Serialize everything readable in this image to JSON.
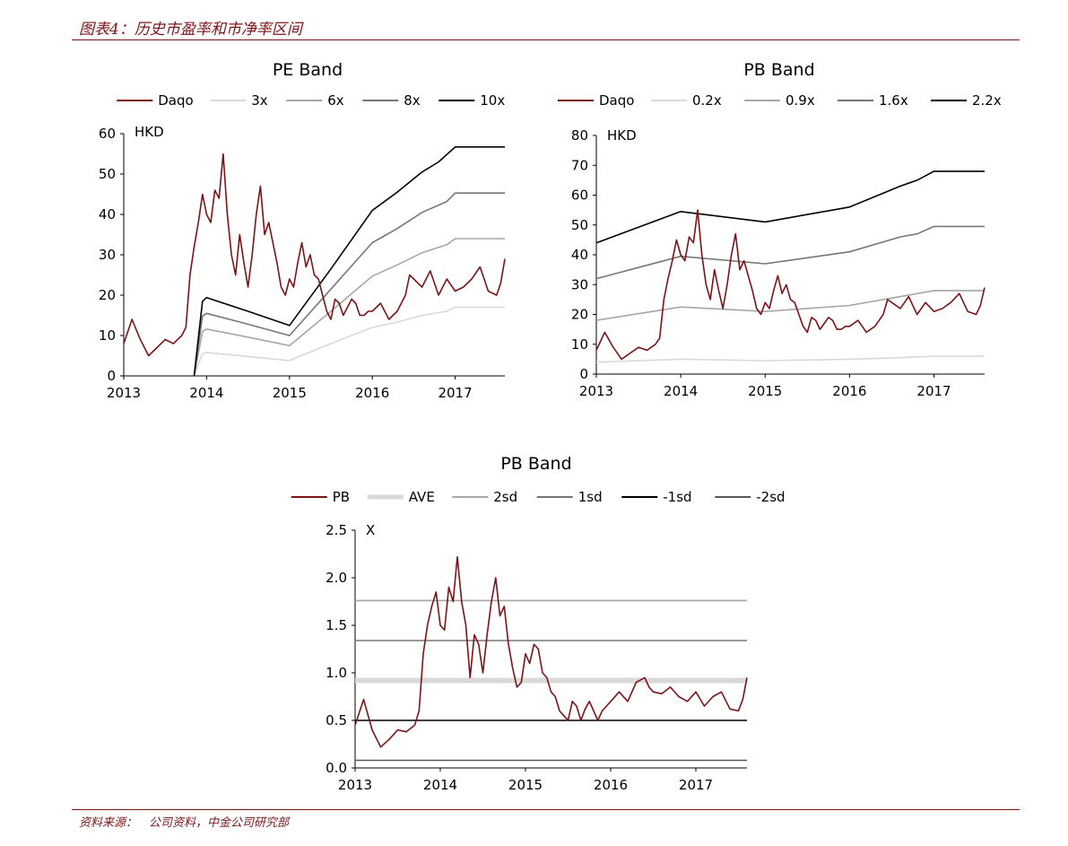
{
  "page": {
    "header": "图表4：历史市盈率和市净率区间",
    "source": "资料来源：　公司资料，中金公司研究部"
  },
  "chart_data": [
    {
      "type": "line",
      "title": "PE Band",
      "unit_label": "HKD",
      "ylim": [
        0,
        60
      ],
      "yticks": [
        0,
        10,
        20,
        30,
        40,
        50,
        60
      ],
      "xlim": [
        2013,
        2017.6
      ],
      "xticks": [
        2013,
        2014,
        2015,
        2016,
        2017
      ],
      "series": [
        {
          "name": "Daqo",
          "color": "#7b1416",
          "width": 1.6,
          "x": [
            2013.0,
            2013.1,
            2013.2,
            2013.3,
            2013.4,
            2013.5,
            2013.6,
            2013.7,
            2013.75,
            2013.8,
            2013.85,
            2013.9,
            2013.95,
            2014.0,
            2014.05,
            2014.1,
            2014.15,
            2014.2,
            2014.25,
            2014.3,
            2014.35,
            2014.4,
            2014.45,
            2014.5,
            2014.55,
            2014.6,
            2014.65,
            2014.7,
            2014.75,
            2014.8,
            2014.85,
            2014.9,
            2014.95,
            2015.0,
            2015.05,
            2015.1,
            2015.15,
            2015.2,
            2015.25,
            2015.3,
            2015.35,
            2015.4,
            2015.45,
            2015.5,
            2015.55,
            2015.6,
            2015.65,
            2015.7,
            2015.75,
            2015.8,
            2015.85,
            2015.9,
            2015.95,
            2016.0,
            2016.1,
            2016.2,
            2016.3,
            2016.4,
            2016.45,
            2016.5,
            2016.6,
            2016.7,
            2016.8,
            2016.9,
            2017.0,
            2017.1,
            2017.2,
            2017.3,
            2017.4,
            2017.5,
            2017.55,
            2017.6
          ],
          "y": [
            8,
            14,
            9,
            5,
            7,
            9,
            8,
            10,
            12,
            25,
            32,
            38,
            45,
            40,
            38,
            46,
            44,
            55,
            40,
            30,
            25,
            35,
            28,
            22,
            30,
            40,
            47,
            35,
            38,
            33,
            28,
            22,
            20,
            24,
            22,
            28,
            33,
            27,
            30,
            25,
            24,
            20,
            16,
            14,
            19,
            18,
            15,
            17,
            19,
            18,
            15,
            15,
            16,
            16,
            18,
            14,
            16,
            20,
            25,
            24,
            22,
            26,
            20,
            24,
            21,
            22,
            24,
            27,
            21,
            20,
            23,
            29
          ]
        },
        {
          "name": "3x",
          "color": "#d9d9d9",
          "width": 1.6,
          "x": [
            2013.85,
            2013.95,
            2014.0,
            2014.5,
            2015.0,
            2015.5,
            2016.0,
            2016.3,
            2016.6,
            2016.9,
            2017.0,
            2017.6
          ],
          "y": [
            0,
            5.5,
            5.8,
            4.8,
            3.8,
            8,
            12,
            13.3,
            15,
            16,
            17,
            17
          ]
        },
        {
          "name": "6x",
          "color": "#a6a6a6",
          "width": 1.6,
          "x": [
            2013.85,
            2013.95,
            2014.0,
            2014.5,
            2015.0,
            2015.5,
            2016.0,
            2016.3,
            2016.6,
            2016.9,
            2017.0,
            2017.6
          ],
          "y": [
            0,
            11,
            11.6,
            9.6,
            7.5,
            16,
            24.7,
            27.5,
            30.5,
            32.5,
            34,
            34
          ]
        },
        {
          "name": "8x",
          "color": "#767676",
          "width": 1.6,
          "x": [
            2013.85,
            2013.95,
            2014.0,
            2014.5,
            2015.0,
            2015.5,
            2016.0,
            2016.3,
            2016.6,
            2016.9,
            2017.0,
            2017.6
          ],
          "y": [
            0,
            14.8,
            15.5,
            12.8,
            10,
            21.5,
            33,
            36.5,
            40.5,
            43.2,
            45.3,
            45.3
          ]
        },
        {
          "name": "10x",
          "color": "#000000",
          "width": 1.6,
          "x": [
            2013.85,
            2013.95,
            2014.0,
            2014.5,
            2015.0,
            2015.5,
            2016.0,
            2016.3,
            2016.6,
            2016.8,
            2017.0,
            2017.6
          ],
          "y": [
            0,
            18.5,
            19.4,
            16,
            12.5,
            26.5,
            41,
            45.5,
            50.5,
            53,
            56.7,
            56.7
          ]
        }
      ]
    },
    {
      "type": "line",
      "title": "PB Band",
      "unit_label": "HKD",
      "ylim": [
        0,
        80
      ],
      "yticks": [
        0,
        10,
        20,
        30,
        40,
        50,
        60,
        70,
        80
      ],
      "xlim": [
        2013,
        2017.6
      ],
      "xticks": [
        2013,
        2014,
        2015,
        2016,
        2017
      ],
      "series": [
        {
          "name": "Daqo",
          "color": "#7b1416",
          "width": 1.6,
          "x": [
            2013.0,
            2013.1,
            2013.2,
            2013.3,
            2013.4,
            2013.5,
            2013.6,
            2013.7,
            2013.75,
            2013.8,
            2013.85,
            2013.9,
            2013.95,
            2014.0,
            2014.05,
            2014.1,
            2014.15,
            2014.2,
            2014.25,
            2014.3,
            2014.35,
            2014.4,
            2014.45,
            2014.5,
            2014.55,
            2014.6,
            2014.65,
            2014.7,
            2014.75,
            2014.8,
            2014.85,
            2014.9,
            2014.95,
            2015.0,
            2015.05,
            2015.1,
            2015.15,
            2015.2,
            2015.25,
            2015.3,
            2015.35,
            2015.4,
            2015.45,
            2015.5,
            2015.55,
            2015.6,
            2015.65,
            2015.7,
            2015.75,
            2015.8,
            2015.85,
            2015.9,
            2015.95,
            2016.0,
            2016.1,
            2016.2,
            2016.3,
            2016.4,
            2016.45,
            2016.5,
            2016.6,
            2016.7,
            2016.8,
            2016.9,
            2017.0,
            2017.1,
            2017.2,
            2017.3,
            2017.4,
            2017.5,
            2017.55,
            2017.6
          ],
          "y": [
            8,
            14,
            9,
            5,
            7,
            9,
            8,
            10,
            12,
            25,
            32,
            38,
            45,
            40,
            38,
            46,
            44,
            55,
            40,
            30,
            25,
            35,
            28,
            22,
            30,
            40,
            47,
            35,
            38,
            33,
            28,
            22,
            20,
            24,
            22,
            28,
            33,
            27,
            30,
            25,
            24,
            20,
            16,
            14,
            19,
            18,
            15,
            17,
            19,
            18,
            15,
            15,
            16,
            16,
            18,
            14,
            16,
            20,
            25,
            24,
            22,
            26,
            20,
            24,
            21,
            22,
            24,
            27,
            21,
            20,
            23,
            29
          ]
        },
        {
          "name": "0.2x",
          "color": "#d9d9d9",
          "width": 1.6,
          "x": [
            2013.0,
            2014.0,
            2015.0,
            2016.0,
            2016.6,
            2017.0,
            2017.6
          ],
          "y": [
            4,
            5,
            4.5,
            5,
            5.5,
            6,
            6
          ]
        },
        {
          "name": "0.9x",
          "color": "#a6a6a6",
          "width": 1.6,
          "x": [
            2013.0,
            2014.0,
            2015.0,
            2016.0,
            2016.6,
            2017.0,
            2017.6
          ],
          "y": [
            18,
            22.5,
            21,
            23,
            26,
            28,
            28
          ]
        },
        {
          "name": "1.6x",
          "color": "#767676",
          "width": 1.6,
          "x": [
            2013.0,
            2014.0,
            2015.0,
            2016.0,
            2016.6,
            2016.8,
            2017.0,
            2017.6
          ],
          "y": [
            32,
            39.5,
            37,
            41,
            46,
            47,
            49.5,
            49.5
          ]
        },
        {
          "name": "2.2x",
          "color": "#000000",
          "width": 1.6,
          "x": [
            2013.0,
            2014.0,
            2015.0,
            2016.0,
            2016.6,
            2016.8,
            2017.0,
            2017.6
          ],
          "y": [
            44,
            54.5,
            51,
            56,
            63,
            65,
            68,
            68
          ]
        }
      ]
    },
    {
      "type": "line",
      "title": "PB Band",
      "unit_label": "X",
      "ylim": [
        0,
        2.5
      ],
      "yticks": [
        "0.0",
        "0.5",
        "1.0",
        "1.5",
        "2.0",
        "2.5"
      ],
      "xlim": [
        2013,
        2017.6
      ],
      "xticks": [
        2013,
        2014,
        2015,
        2016,
        2017
      ],
      "series": [
        {
          "name": "PB",
          "color": "#7b1416",
          "width": 1.6,
          "x": [
            2013.0,
            2013.1,
            2013.2,
            2013.3,
            2013.4,
            2013.5,
            2013.6,
            2013.7,
            2013.75,
            2013.8,
            2013.85,
            2013.9,
            2013.95,
            2014.0,
            2014.05,
            2014.1,
            2014.15,
            2014.2,
            2014.25,
            2014.3,
            2014.35,
            2014.4,
            2014.45,
            2014.5,
            2014.55,
            2014.6,
            2014.65,
            2014.7,
            2014.75,
            2014.8,
            2014.85,
            2014.9,
            2014.95,
            2015.0,
            2015.05,
            2015.1,
            2015.15,
            2015.2,
            2015.25,
            2015.3,
            2015.35,
            2015.4,
            2015.45,
            2015.5,
            2015.55,
            2015.6,
            2015.65,
            2015.7,
            2015.75,
            2015.8,
            2015.85,
            2015.9,
            2015.95,
            2016.0,
            2016.1,
            2016.2,
            2016.3,
            2016.4,
            2016.45,
            2016.5,
            2016.6,
            2016.7,
            2016.8,
            2016.9,
            2017.0,
            2017.1,
            2017.2,
            2017.3,
            2017.4,
            2017.5,
            2017.55,
            2017.6
          ],
          "y": [
            0.45,
            0.72,
            0.4,
            0.22,
            0.3,
            0.4,
            0.38,
            0.45,
            0.6,
            1.2,
            1.5,
            1.7,
            1.85,
            1.5,
            1.45,
            1.9,
            1.75,
            2.22,
            1.75,
            1.5,
            0.95,
            1.4,
            1.3,
            1.0,
            1.4,
            1.75,
            2.0,
            1.6,
            1.7,
            1.3,
            1.05,
            0.85,
            0.9,
            1.2,
            1.1,
            1.3,
            1.25,
            1.0,
            0.95,
            0.8,
            0.75,
            0.6,
            0.55,
            0.5,
            0.7,
            0.65,
            0.5,
            0.62,
            0.7,
            0.6,
            0.5,
            0.6,
            0.65,
            0.7,
            0.8,
            0.7,
            0.9,
            0.95,
            0.85,
            0.8,
            0.78,
            0.85,
            0.75,
            0.7,
            0.8,
            0.65,
            0.75,
            0.8,
            0.62,
            0.6,
            0.72,
            0.95
          ]
        },
        {
          "name": "AVE",
          "color": "#d9d9d9",
          "width": 6,
          "x": [
            2013.0,
            2017.6
          ],
          "y": [
            0.92,
            0.92
          ]
        },
        {
          "name": "2sd",
          "color": "#a6a6a6",
          "width": 1.6,
          "x": [
            2013.0,
            2017.6
          ],
          "y": [
            1.76,
            1.76
          ]
        },
        {
          "name": "1sd",
          "color": "#767676",
          "width": 1.6,
          "x": [
            2013.0,
            2017.6
          ],
          "y": [
            1.34,
            1.34
          ]
        },
        {
          "name": "-1sd",
          "color": "#000000",
          "width": 1.6,
          "x": [
            2013.0,
            2017.6
          ],
          "y": [
            0.5,
            0.5
          ]
        },
        {
          "name": "-2sd",
          "color": "#595959",
          "width": 1.6,
          "x": [
            2013.0,
            2017.6
          ],
          "y": [
            0.08,
            0.08
          ]
        }
      ]
    }
  ]
}
